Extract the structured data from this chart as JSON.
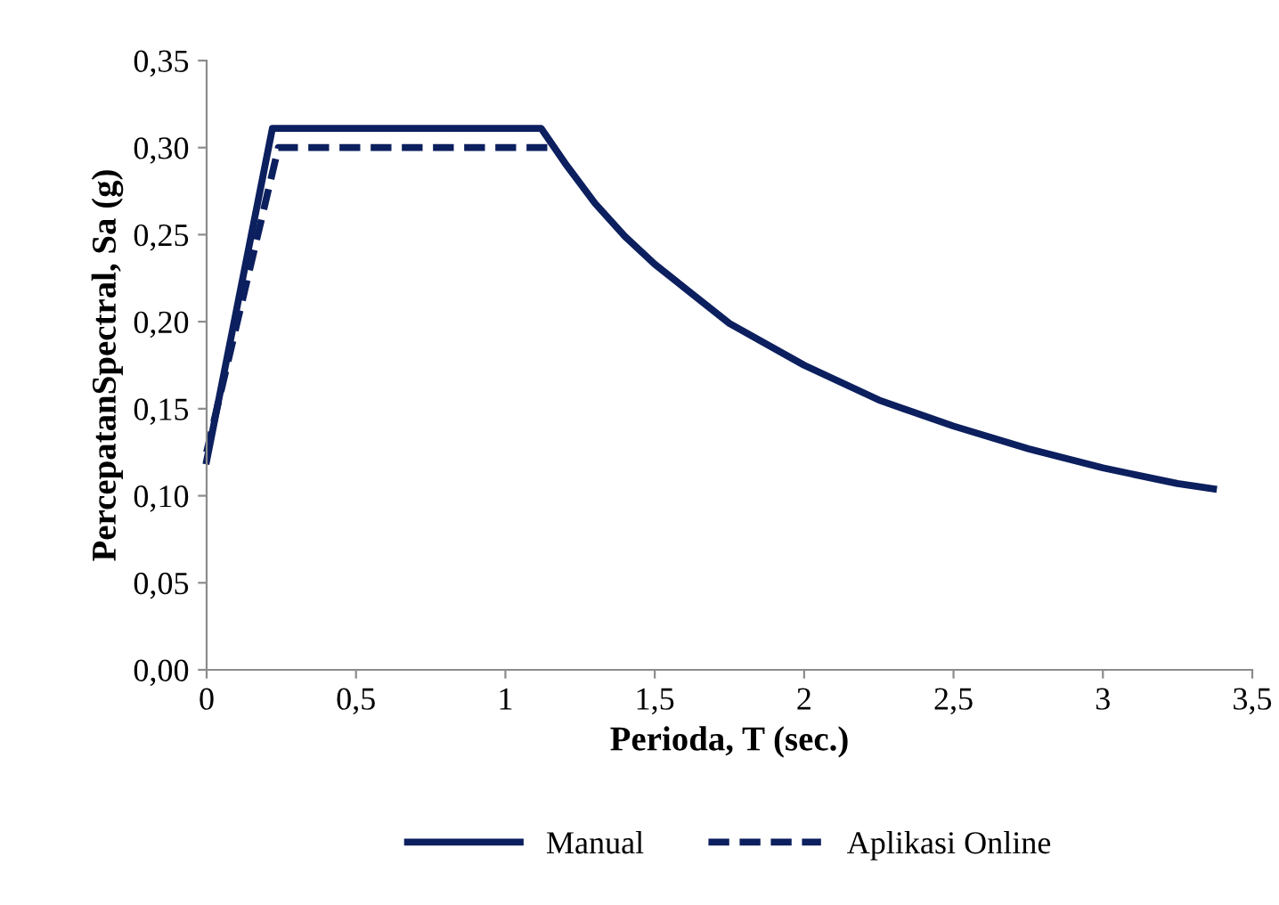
{
  "chart_data": {
    "type": "line",
    "xlabel": "Perioda, T (sec.)",
    "ylabel": "PercepatanSpectral, Sa (g)",
    "xlim": [
      0,
      3.5
    ],
    "ylim": [
      0,
      0.35
    ],
    "xticks": [
      0,
      {
        "value": 0.5,
        "label": "0,5"
      },
      1,
      {
        "value": 1.5,
        "label": "1,5"
      },
      2,
      {
        "value": 2.5,
        "label": "2,5"
      },
      3,
      {
        "value": 3.5,
        "label": "3,5"
      }
    ],
    "yticks": [
      {
        "value": 0,
        "label": "0,00"
      },
      {
        "value": 0.05,
        "label": "0,05"
      },
      {
        "value": 0.1,
        "label": "0,10"
      },
      {
        "value": 0.15,
        "label": "0,15"
      },
      {
        "value": 0.2,
        "label": "0,20"
      },
      {
        "value": 0.25,
        "label": "0,25"
      },
      {
        "value": 0.3,
        "label": "0,30"
      },
      {
        "value": 0.35,
        "label": "0,35"
      }
    ],
    "grid": false,
    "legend": "bottom",
    "marker": "none",
    "series": [
      {
        "name": "Manual",
        "color": "#0c1f5e",
        "line_style": "solid",
        "x": [
          0,
          0.22,
          1.12,
          1.2,
          1.3,
          1.4,
          1.5,
          1.75,
          2,
          2.25,
          2.5,
          2.75,
          3,
          3.25,
          3.37
        ],
        "values": [
          0.12,
          0.311,
          0.311,
          0.291,
          0.268,
          0.249,
          0.233,
          0.199,
          0.175,
          0.155,
          0.14,
          0.127,
          0.116,
          0.107,
          0.104
        ]
      },
      {
        "name": "Aplikasi Online",
        "color": "#0c1f5e",
        "line_style": "dashed",
        "x": [
          0,
          0.24,
          1.16
        ],
        "values": [
          0.125,
          0.3,
          0.3
        ]
      }
    ]
  }
}
